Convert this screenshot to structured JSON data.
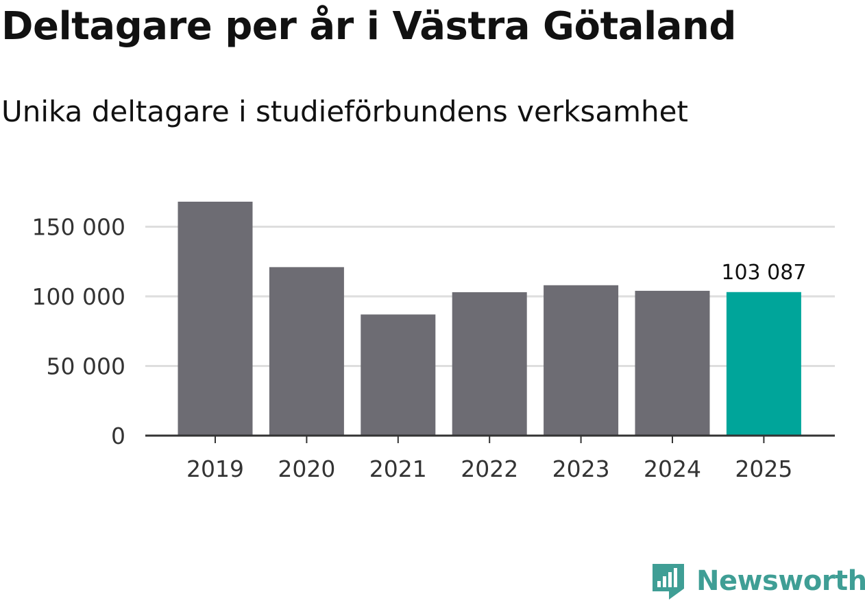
{
  "header": {
    "title": "Deltagare per år i Västra Götaland",
    "subtitle": "Unika deltagare i studieförbundens verksamhet"
  },
  "chart_data": {
    "type": "bar",
    "title": "Deltagare per år i Västra Götaland",
    "subtitle": "Unika deltagare i studieförbundens verksamhet",
    "categories": [
      "2019",
      "2020",
      "2021",
      "2022",
      "2023",
      "2024",
      "2025"
    ],
    "values": [
      168000,
      121000,
      87000,
      103000,
      108000,
      104000,
      103087
    ],
    "highlight_index": 6,
    "data_labels": [
      {
        "index": 6,
        "text": "103 087"
      }
    ],
    "xlabel": "",
    "ylabel": "",
    "ylim": [
      0,
      168000
    ],
    "yticks": [
      0,
      50000,
      100000,
      150000
    ],
    "ytick_labels": [
      "0",
      "50 000",
      "100 000",
      "150 000"
    ],
    "grid": true,
    "bar_color": "#6d6c73",
    "highlight_color": "#00a59a",
    "grid_color": "#dedede",
    "axis_color": "#333333"
  },
  "brand": {
    "name": "Newsworthy",
    "color": "#3f9e95",
    "icon": "newsworthy-logo-icon"
  }
}
